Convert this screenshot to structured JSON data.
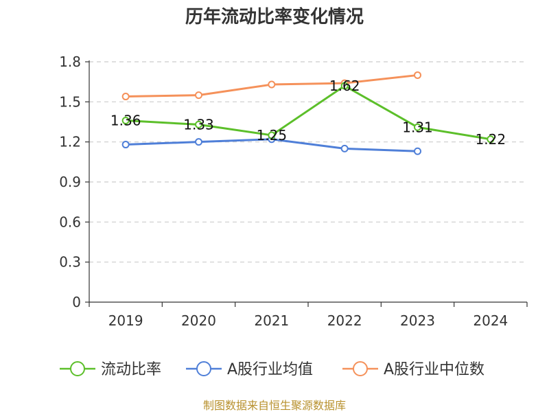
{
  "chart_data": {
    "type": "line",
    "title": "历年流动比率变化情况",
    "categories": [
      "2019",
      "2020",
      "2021",
      "2022",
      "2023",
      "2024"
    ],
    "ylim": [
      0,
      1.8
    ],
    "yticks": [
      "0",
      "0.3",
      "0.6",
      "0.9",
      "1.2",
      "1.5",
      "1.8"
    ],
    "grid": true,
    "legend_position": "bottom",
    "series": [
      {
        "name": "流动比率",
        "color": "#5cbf2a",
        "values": [
          1.36,
          1.33,
          1.25,
          1.62,
          1.31,
          1.22
        ],
        "labels": [
          "1.36",
          "1.33",
          "1.25",
          "1.62",
          "1.31",
          "1.22"
        ],
        "show_labels": true
      },
      {
        "name": "A股行业均值",
        "color": "#4f7fd8",
        "values": [
          1.18,
          1.2,
          1.22,
          1.15,
          1.13,
          null
        ],
        "show_labels": false
      },
      {
        "name": "A股行业中位数",
        "color": "#f5915a",
        "values": [
          1.54,
          1.55,
          1.63,
          1.64,
          1.7,
          null
        ],
        "show_labels": false
      }
    ]
  },
  "source": "制图数据来自恒生聚源数据库"
}
